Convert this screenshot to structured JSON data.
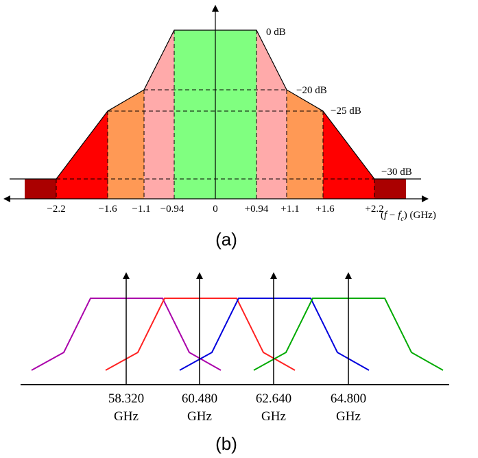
{
  "panel_a": {
    "caption": "(a)",
    "level_labels": {
      "l0": "0 dB",
      "l20": "−20 dB",
      "l25": "−25 dB",
      "l30": "−30 dB"
    },
    "freq_ticks": {
      "m22": "−2.2",
      "m16": "−1.6",
      "m11": "−1.1",
      "m094": "−0.94",
      "zero": "0",
      "p094": "+0.94",
      "p11": "+1.1",
      "p16": "+1.6",
      "p22": "+2.2"
    },
    "axis_label": {
      "f": "f",
      "minus": " − ",
      "fc_f": "f",
      "fc_sub": "c",
      "unit": " (GHz)"
    },
    "colors": {
      "center": "#80ff80",
      "inner": "#ffaaaa",
      "middle": "#ff9955",
      "outer": "#ff0000",
      "edge": "#aa0000"
    }
  },
  "panel_b": {
    "caption": "(b)",
    "channels": [
      {
        "freq": "58.320",
        "unit": "GHz",
        "color": "#aa00aa"
      },
      {
        "freq": "60.480",
        "unit": "GHz",
        "color": "#ff2222"
      },
      {
        "freq": "62.640",
        "unit": "GHz",
        "color": "#0000dd"
      },
      {
        "freq": "64.800",
        "unit": "GHz",
        "color": "#00aa00"
      }
    ]
  }
}
